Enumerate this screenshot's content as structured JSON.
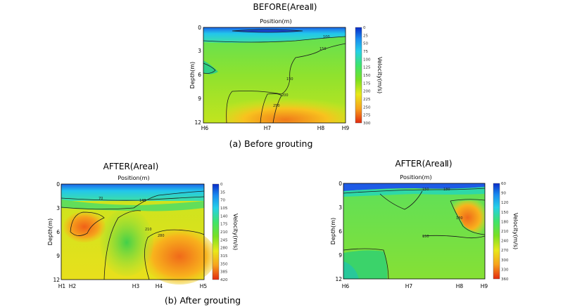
{
  "captions": {
    "before": "(a) Before grouting",
    "after": "(b) After grouting"
  },
  "chart_data": [
    {
      "type": "heatmap",
      "title": "BEFORE(AreaⅡ)",
      "xlabel": "Position(m)",
      "ylabel": "Depth(m)",
      "colorbar_label": "Velocity(m/s)",
      "x_ticks": [
        "H6",
        "H7",
        "H8",
        "H9"
      ],
      "y_ticks": [
        "0",
        "3",
        "6",
        "9",
        "12"
      ],
      "colorbar_ticks": [
        "0",
        "25",
        "50",
        "75",
        "100",
        "125",
        "150",
        "175",
        "200",
        "225",
        "250",
        "275",
        "300"
      ],
      "ylim": [
        0,
        12
      ],
      "contour_labels": [
        "100",
        "150",
        "150",
        "200",
        "250"
      ]
    },
    {
      "type": "heatmap",
      "title": "AFTER(AreaⅠ)",
      "xlabel": "Position(m)",
      "ylabel": "Depth(m)",
      "colorbar_label": "Velocity(m/s)",
      "x_ticks": [
        "H1",
        "H2",
        "H3",
        "H4",
        "H5"
      ],
      "y_ticks": [
        "0",
        "3",
        "6",
        "9",
        "12"
      ],
      "colorbar_ticks": [
        "0",
        "35",
        "70",
        "105",
        "140",
        "175",
        "210",
        "245",
        "280",
        "315",
        "350",
        "385",
        "420"
      ],
      "ylim": [
        0,
        12
      ],
      "contour_labels": [
        "70",
        "140",
        "210",
        "280"
      ]
    },
    {
      "type": "heatmap",
      "title": "AFTER(AreaⅡ)",
      "xlabel": "Position(m)",
      "ylabel": "Depth(m)",
      "colorbar_label": "Velocity(m/s)",
      "x_ticks": [
        "H6",
        "H7",
        "H8",
        "H9"
      ],
      "y_ticks": [
        "0",
        "3",
        "6",
        "9",
        "12"
      ],
      "colorbar_ticks": [
        "60",
        "90",
        "120",
        "150",
        "180",
        "210",
        "240",
        "270",
        "300",
        "330",
        "360"
      ],
      "ylim": [
        0,
        12
      ],
      "contour_labels": [
        "150",
        "180",
        "150",
        "180"
      ]
    }
  ]
}
